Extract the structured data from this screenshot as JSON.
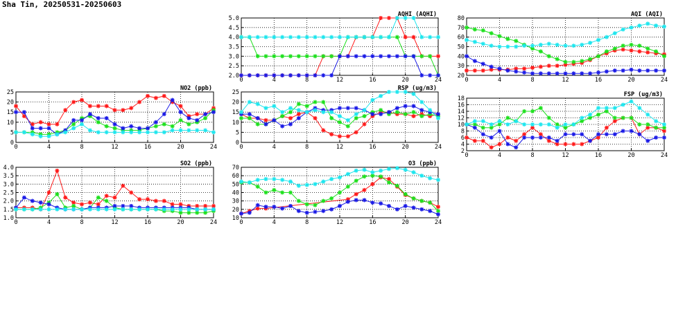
{
  "title": "Sha Tin, 20250531-20250603",
  "colors": {
    "grid": "#000000",
    "red": "#ff1a1a",
    "green": "#1ee01e",
    "blue": "#1a1ae6",
    "cyan": "#1ee6ee"
  },
  "series_colors": [
    "red",
    "green",
    "blue",
    "cyan"
  ],
  "chart_data": [
    {
      "id": "no2",
      "type": "line",
      "title": "NO2 (ppb)",
      "xlim": [
        0,
        24
      ],
      "xticks": [
        0,
        4,
        8,
        12,
        16,
        20,
        24
      ],
      "ylim": [
        0,
        25
      ],
      "yticks": [
        0,
        5,
        10,
        15,
        20,
        25
      ],
      "grid": true,
      "series": [
        {
          "color": "red",
          "values": [
            18,
            13,
            9,
            10,
            9,
            9,
            16,
            20,
            21,
            18,
            18,
            18,
            16,
            16,
            17,
            20,
            23,
            22,
            23,
            20,
            18,
            13,
            14,
            14,
            17
          ]
        },
        {
          "color": "green",
          "values": [
            5,
            5,
            5,
            4,
            4,
            5,
            6,
            9,
            12,
            13,
            10,
            8,
            7,
            6,
            6,
            6,
            7,
            8,
            9,
            8,
            11,
            9,
            10,
            12,
            16
          ]
        },
        {
          "color": "blue",
          "values": [
            15,
            15,
            7,
            7,
            7,
            4,
            6,
            11,
            11,
            14,
            12,
            12,
            9,
            7,
            8,
            7,
            7,
            10,
            14,
            21,
            15,
            12,
            11,
            14,
            15
          ]
        },
        {
          "color": "cyan",
          "values": [
            5,
            5,
            4,
            3,
            3,
            4,
            5,
            7,
            9,
            6,
            5,
            5,
            5,
            5,
            5,
            5,
            5,
            5,
            5,
            6,
            6,
            6,
            6,
            6,
            5
          ]
        }
      ]
    },
    {
      "id": "so2",
      "type": "line",
      "title": "SO2 (ppb)",
      "xlim": [
        0,
        24
      ],
      "xticks": [
        0,
        4,
        8,
        12,
        16,
        20,
        24
      ],
      "ylim": [
        1.0,
        4.0
      ],
      "yticks": [
        1.0,
        1.5,
        2.0,
        2.5,
        3.0,
        3.5,
        4.0
      ],
      "ytick_decimals": 1,
      "grid": true,
      "series": [
        {
          "color": "red",
          "values": [
            1.6,
            1.6,
            1.6,
            1.5,
            2.5,
            3.8,
            2.2,
            1.9,
            1.8,
            1.9,
            1.8,
            2.3,
            2.2,
            2.9,
            2.5,
            2.1,
            2.1,
            2.0,
            2.0,
            1.8,
            1.8,
            1.7,
            1.7,
            1.7,
            1.7
          ]
        },
        {
          "color": "green",
          "values": [
            1.5,
            1.5,
            1.5,
            1.6,
            1.9,
            2.4,
            1.6,
            1.7,
            1.5,
            1.6,
            2.2,
            2.0,
            1.6,
            1.5,
            1.5,
            1.5,
            1.5,
            1.5,
            1.4,
            1.4,
            1.3,
            1.3,
            1.3,
            1.3,
            1.4
          ]
        },
        {
          "color": "blue",
          "values": [
            1.6,
            2.2,
            2.0,
            1.9,
            1.8,
            1.6,
            1.5,
            1.5,
            1.5,
            1.6,
            1.6,
            1.6,
            1.7,
            1.7,
            1.7,
            1.6,
            1.6,
            1.6,
            1.6,
            1.6,
            1.6,
            1.6,
            1.5,
            1.5,
            1.5
          ]
        },
        {
          "color": "cyan",
          "values": [
            1.5,
            1.5,
            1.5,
            1.5,
            1.5,
            1.5,
            1.5,
            1.5,
            1.5,
            1.5,
            1.5,
            1.5,
            1.5,
            1.5,
            1.5,
            1.5,
            1.5,
            1.5,
            1.5,
            1.5,
            1.5,
            1.5,
            1.5,
            1.5,
            1.5
          ]
        }
      ]
    },
    {
      "id": "aqhi",
      "type": "line",
      "title": "AQHI (AQHI)",
      "xlim": [
        0,
        24
      ],
      "xticks": [
        0,
        4,
        8,
        12,
        16,
        20,
        24
      ],
      "ylim": [
        2.0,
        5.0
      ],
      "yticks": [
        2.0,
        2.5,
        3.0,
        3.5,
        4.0,
        4.5,
        5.0
      ],
      "ytick_decimals": 1,
      "grid": true,
      "series": [
        {
          "color": "red",
          "values": [
            2,
            2,
            2,
            2,
            2,
            2,
            2,
            2,
            2,
            2,
            3,
            3,
            3,
            3,
            4,
            4,
            4,
            5,
            5,
            5,
            4,
            4,
            3,
            3,
            3
          ]
        },
        {
          "color": "green",
          "values": [
            4,
            4,
            3,
            3,
            3,
            3,
            3,
            3,
            3,
            3,
            3,
            3,
            3,
            4,
            4,
            4,
            4,
            4,
            4,
            4,
            3,
            3,
            3,
            3,
            2
          ]
        },
        {
          "color": "blue",
          "values": [
            2,
            2,
            2,
            2,
            2,
            2,
            2,
            2,
            2,
            2,
            2,
            2,
            3,
            3,
            3,
            3,
            3,
            3,
            3,
            3,
            3,
            3,
            2,
            2,
            2
          ]
        },
        {
          "color": "cyan",
          "values": [
            4,
            4,
            4,
            4,
            4,
            4,
            4,
            4,
            4,
            4,
            4,
            4,
            4,
            4,
            4,
            4,
            4,
            4,
            4,
            5,
            5,
            5,
            4,
            4,
            4
          ]
        }
      ]
    },
    {
      "id": "rsp",
      "type": "line",
      "title": "RSP (ug/m3)",
      "xlim": [
        0,
        24
      ],
      "xticks": [
        0,
        4,
        8,
        12,
        16,
        20,
        24
      ],
      "ylim": [
        0,
        25
      ],
      "yticks": [
        0,
        5,
        10,
        15,
        20,
        25
      ],
      "grid": true,
      "series": [
        {
          "color": "red",
          "values": [
            14,
            12,
            12,
            11,
            11,
            13,
            12,
            14,
            15,
            12,
            6,
            4,
            3,
            3,
            5,
            9,
            13,
            15,
            15,
            14,
            14,
            13,
            14,
            13,
            14
          ]
        },
        {
          "color": "green",
          "values": [
            12,
            12,
            9,
            9,
            11,
            13,
            15,
            19,
            18,
            20,
            20,
            12,
            10,
            8,
            12,
            13,
            15,
            16,
            14,
            15,
            14,
            15,
            13,
            14,
            13
          ]
        },
        {
          "color": "blue",
          "values": [
            14,
            14,
            12,
            9,
            11,
            8,
            9,
            12,
            15,
            17,
            16,
            16,
            17,
            17,
            17,
            16,
            14,
            14,
            15,
            17,
            18,
            18,
            16,
            15,
            14
          ]
        },
        {
          "color": "cyan",
          "values": [
            15,
            20,
            19,
            17,
            18,
            15,
            17,
            16,
            15,
            16,
            15,
            15,
            13,
            11,
            14,
            16,
            21,
            23,
            25,
            25,
            26,
            24,
            20,
            16,
            12
          ]
        }
      ]
    },
    {
      "id": "o3",
      "type": "line",
      "title": "O3 (ppb)",
      "xlim": [
        0,
        24
      ],
      "xticks": [
        0,
        4,
        8,
        12,
        16,
        20,
        24
      ],
      "ylim": [
        10,
        70
      ],
      "yticks": [
        10,
        20,
        30,
        40,
        50,
        60,
        70
      ],
      "grid": true,
      "series": [
        {
          "color": "red",
          "x": [
            0,
            1,
            2,
            3,
            13,
            14,
            15,
            16,
            17,
            18,
            19,
            20,
            21,
            22,
            23,
            24
          ],
          "values": [
            15,
            18,
            21,
            21,
            32,
            38,
            43,
            50,
            58,
            56,
            47,
            37,
            33,
            30,
            28,
            23
          ]
        },
        {
          "color": "green",
          "values": [
            52,
            52,
            47,
            40,
            43,
            40,
            40,
            30,
            26,
            25,
            30,
            33,
            40,
            47,
            54,
            59,
            60,
            59,
            52,
            48,
            38,
            33,
            30,
            28,
            18
          ]
        },
        {
          "color": "blue",
          "values": [
            15,
            16,
            25,
            23,
            23,
            21,
            24,
            18,
            16,
            17,
            18,
            20,
            24,
            29,
            31,
            31,
            28,
            27,
            24,
            20,
            24,
            22,
            20,
            18,
            14
          ]
        },
        {
          "color": "cyan",
          "values": [
            53,
            52,
            55,
            56,
            56,
            55,
            53,
            48,
            49,
            50,
            53,
            56,
            58,
            62,
            66,
            67,
            64,
            66,
            68,
            69,
            67,
            64,
            60,
            57,
            55
          ]
        }
      ]
    },
    {
      "id": "aqi",
      "type": "line",
      "title": "AQI (AQI)",
      "xlim": [
        0,
        24
      ],
      "xticks": [
        0,
        4,
        8,
        12,
        16,
        20,
        24
      ],
      "ylim": [
        20,
        80
      ],
      "yticks": [
        20,
        30,
        40,
        50,
        60,
        70,
        80
      ],
      "grid": true,
      "series": [
        {
          "color": "red",
          "values": [
            25,
            25,
            25,
            26,
            26,
            26,
            27,
            27,
            28,
            29,
            30,
            30,
            31,
            32,
            33,
            36,
            40,
            43,
            46,
            47,
            46,
            45,
            44,
            43,
            42
          ]
        },
        {
          "color": "green",
          "values": [
            70,
            68,
            67,
            64,
            61,
            58,
            56,
            52,
            48,
            45,
            40,
            37,
            34,
            34,
            35,
            37,
            40,
            45,
            48,
            51,
            52,
            51,
            48,
            45,
            40
          ]
        },
        {
          "color": "blue",
          "values": [
            40,
            35,
            32,
            29,
            27,
            25,
            24,
            23,
            22,
            22,
            22,
            22,
            22,
            22,
            22,
            22,
            23,
            24,
            25,
            25,
            26,
            25,
            25,
            25,
            25
          ]
        },
        {
          "color": "cyan",
          "values": [
            57,
            55,
            53,
            51,
            50,
            50,
            50,
            51,
            51,
            52,
            53,
            52,
            51,
            51,
            52,
            54,
            57,
            60,
            64,
            68,
            70,
            72,
            74,
            72,
            71
          ]
        }
      ]
    },
    {
      "id": "fsp",
      "type": "line",
      "title": "FSP (ug/m3)",
      "xlim": [
        0,
        24
      ],
      "xticks": [
        0,
        4,
        8,
        12,
        16,
        20,
        24
      ],
      "ylim": [
        2,
        18
      ],
      "yticks": [
        2,
        4,
        6,
        8,
        10,
        12,
        14,
        16,
        18
      ],
      "grid": true,
      "series": [
        {
          "color": "red",
          "values": [
            6,
            5,
            5,
            3,
            4,
            6,
            5,
            7,
            9,
            7,
            5,
            4,
            4,
            4,
            4,
            5,
            6,
            9,
            11,
            12,
            12,
            7,
            9,
            9,
            8
          ]
        },
        {
          "color": "green",
          "values": [
            10,
            10,
            9,
            9,
            10,
            12,
            11,
            14,
            14,
            15,
            12,
            10,
            9,
            10,
            11,
            12,
            13,
            14,
            12,
            12,
            12,
            10,
            10,
            9,
            9
          ]
        },
        {
          "color": "blue",
          "values": [
            10,
            9,
            7,
            6,
            8,
            4,
            3,
            6,
            6,
            6,
            6,
            5,
            7,
            7,
            7,
            5,
            7,
            7,
            7,
            8,
            8,
            7,
            5,
            6,
            6
          ]
        },
        {
          "color": "cyan",
          "values": [
            10,
            11,
            11,
            10,
            11,
            10,
            11,
            10,
            10,
            10,
            10,
            9,
            10,
            10,
            12,
            13,
            15,
            15,
            15,
            16,
            17,
            15,
            13,
            11,
            10
          ]
        }
      ]
    }
  ]
}
